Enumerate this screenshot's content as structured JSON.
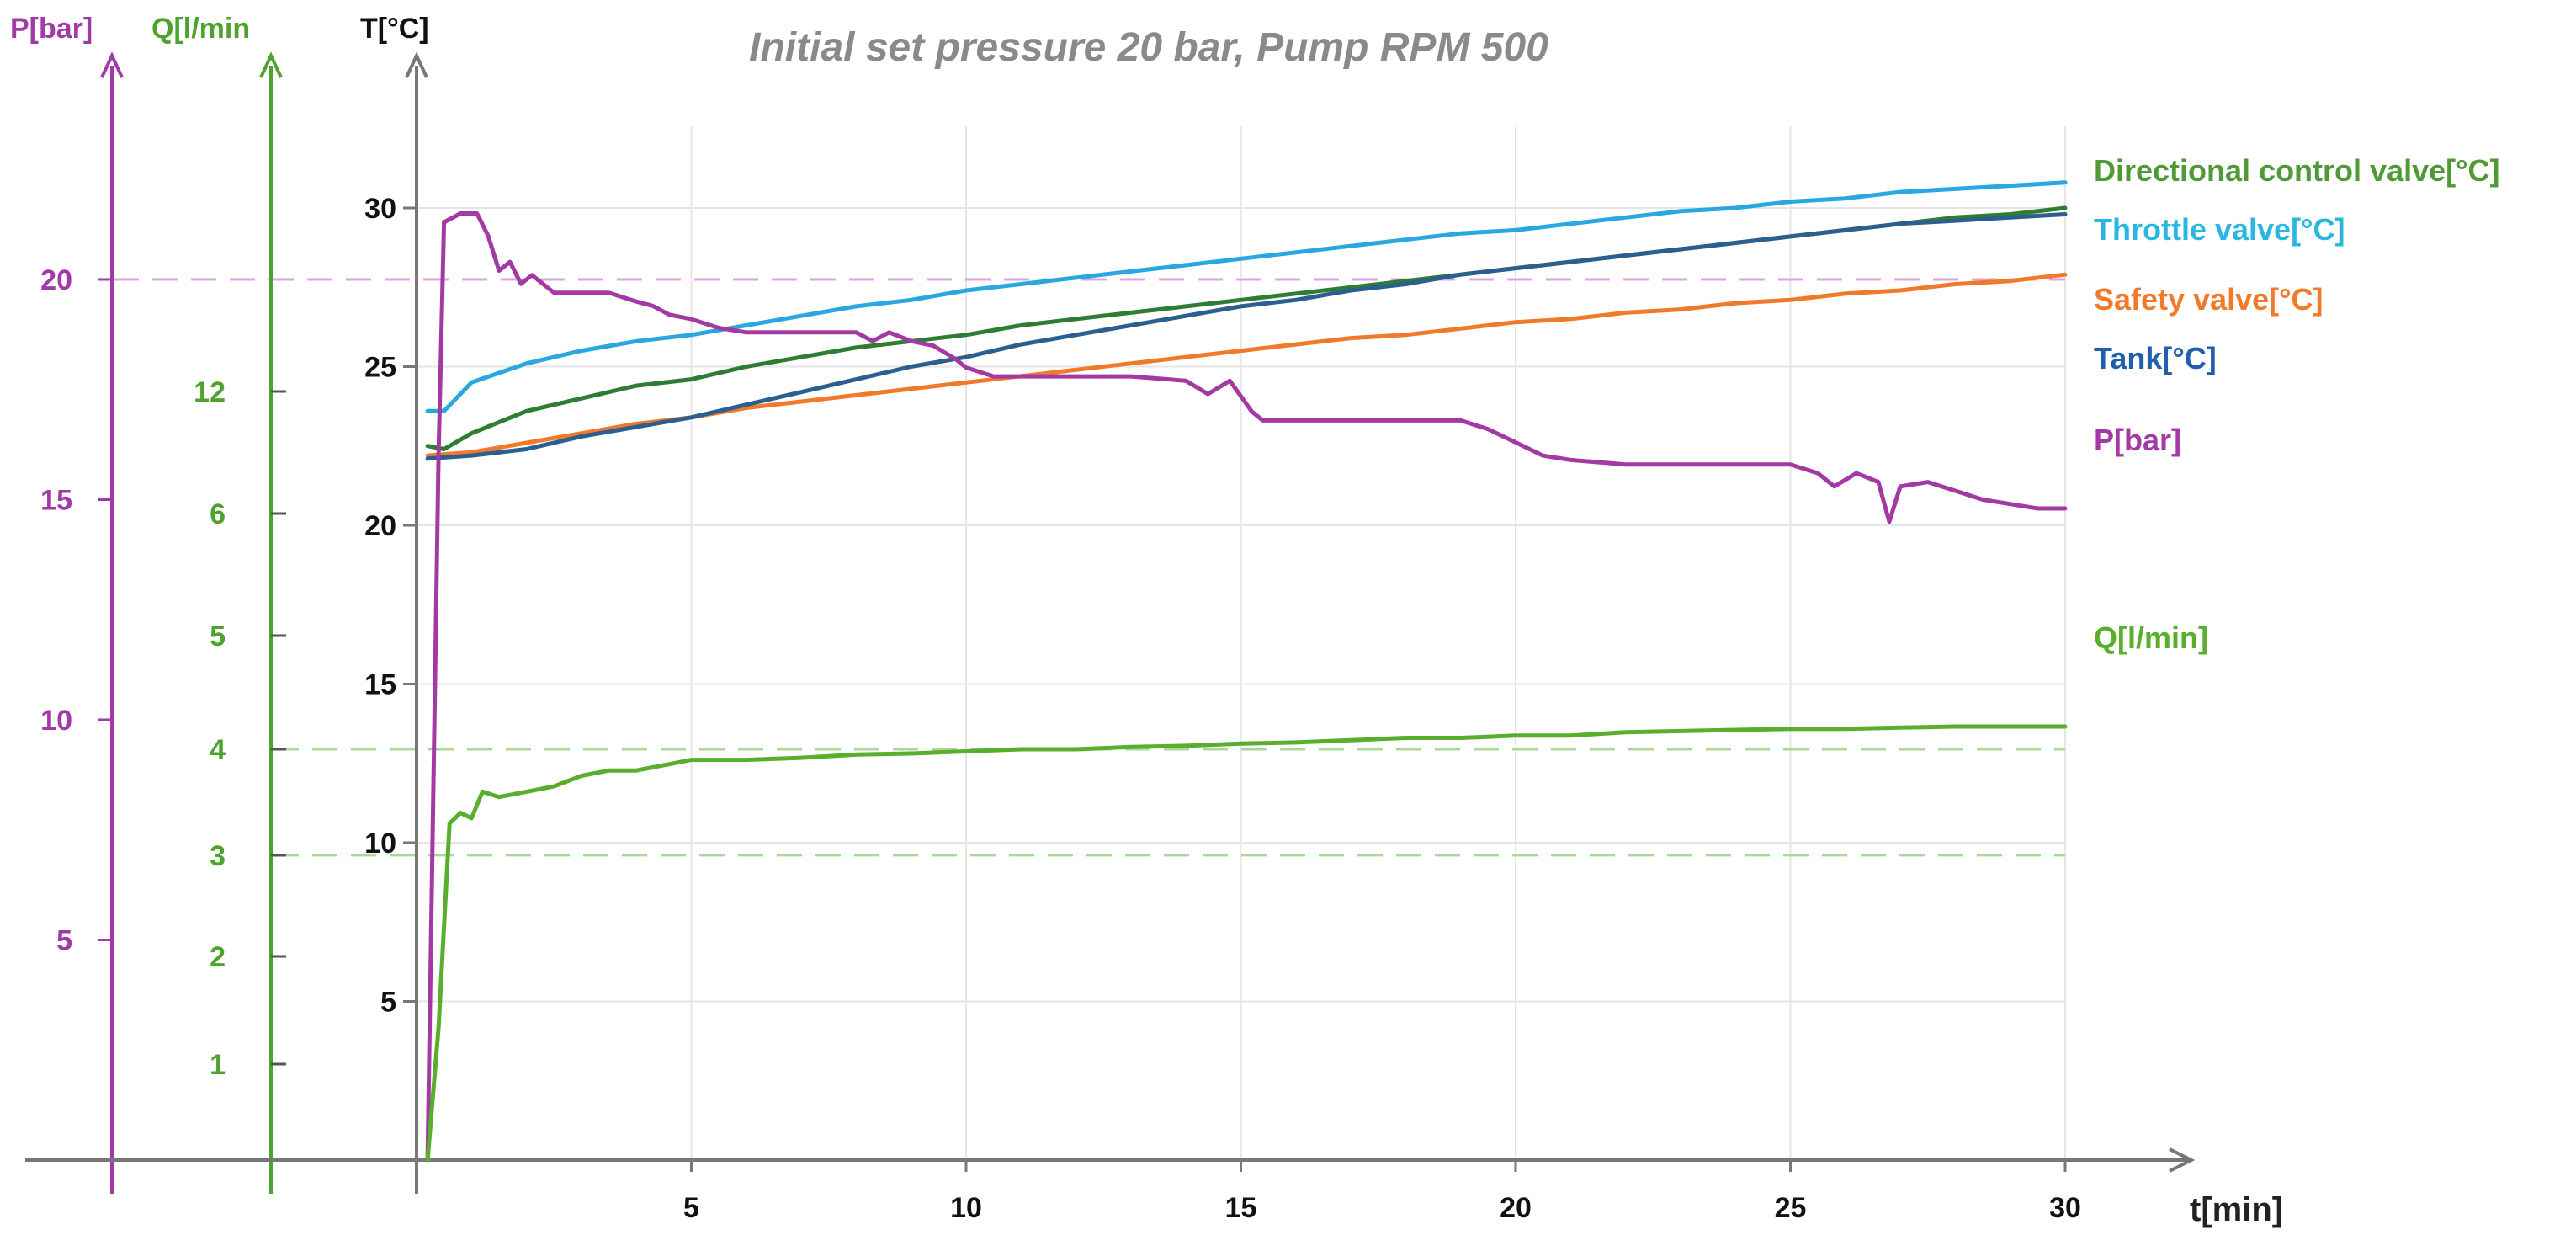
{
  "chart_data": {
    "type": "line",
    "title": "Initial set pressure 20 bar,  Pump RPM 500",
    "xlabel": "t[min]",
    "xlim": [
      0,
      32
    ],
    "xticks": [
      5,
      10,
      15,
      20,
      25,
      30
    ],
    "axes": {
      "pressure": {
        "label": "P[bar]",
        "color": "#a03aa8",
        "ticks": [
          5,
          10,
          15,
          20
        ],
        "ref_line": 20
      },
      "flow": {
        "label": "Q[l/min",
        "color": "#4ea32e",
        "ticks": [
          1,
          2,
          3,
          4,
          5,
          6,
          12
        ],
        "ref_lines": [
          3,
          4
        ]
      },
      "temperature": {
        "label": "T[°C]",
        "color": "#111111",
        "ticks": [
          5,
          10,
          15,
          20,
          25,
          30
        ],
        "ylim": [
          0,
          35
        ]
      }
    },
    "series": [
      {
        "name": "Directional control valve[°C]",
        "axis": "temperature",
        "color": "#2e7d32",
        "legend_color": "#4f9a36",
        "points": [
          [
            0.2,
            22.5
          ],
          [
            0.5,
            22.4
          ],
          [
            1,
            22.9
          ],
          [
            2,
            23.6
          ],
          [
            3,
            24
          ],
          [
            4,
            24.4
          ],
          [
            5,
            24.6
          ],
          [
            6,
            25.0
          ],
          [
            7,
            25.3
          ],
          [
            8,
            25.6
          ],
          [
            9,
            25.8
          ],
          [
            10,
            26.0
          ],
          [
            11,
            26.3
          ],
          [
            12,
            26.5
          ],
          [
            13,
            26.7
          ],
          [
            14,
            26.9
          ],
          [
            15,
            27.1
          ],
          [
            16,
            27.3
          ],
          [
            17,
            27.5
          ],
          [
            18,
            27.7
          ],
          [
            19,
            27.9
          ],
          [
            20,
            28.1
          ],
          [
            21,
            28.3
          ],
          [
            22,
            28.5
          ],
          [
            23,
            28.7
          ],
          [
            24,
            28.9
          ],
          [
            25,
            29.1
          ],
          [
            26,
            29.3
          ],
          [
            27,
            29.5
          ],
          [
            28,
            29.7
          ],
          [
            29,
            29.8
          ],
          [
            30,
            30.0
          ]
        ]
      },
      {
        "name": "Throttle valve[°C]",
        "axis": "temperature",
        "color": "#29a8e0",
        "legend_color": "#29b6e3",
        "points": [
          [
            0.2,
            23.6
          ],
          [
            0.5,
            23.6
          ],
          [
            1,
            24.5
          ],
          [
            2,
            25.1
          ],
          [
            3,
            25.5
          ],
          [
            4,
            25.8
          ],
          [
            5,
            26.0
          ],
          [
            6,
            26.3
          ],
          [
            7,
            26.6
          ],
          [
            8,
            26.9
          ],
          [
            9,
            27.1
          ],
          [
            10,
            27.4
          ],
          [
            11,
            27.6
          ],
          [
            12,
            27.8
          ],
          [
            13,
            28.0
          ],
          [
            14,
            28.2
          ],
          [
            15,
            28.4
          ],
          [
            16,
            28.6
          ],
          [
            17,
            28.8
          ],
          [
            18,
            29.0
          ],
          [
            19,
            29.2
          ],
          [
            20,
            29.3
          ],
          [
            21,
            29.5
          ],
          [
            22,
            29.7
          ],
          [
            23,
            29.9
          ],
          [
            24,
            30.0
          ],
          [
            25,
            30.2
          ],
          [
            26,
            30.3
          ],
          [
            27,
            30.5
          ],
          [
            28,
            30.6
          ],
          [
            29,
            30.7
          ],
          [
            30,
            30.8
          ]
        ]
      },
      {
        "name": "Safety valve[°C]",
        "axis": "temperature",
        "color": "#f07a2a",
        "legend_color": "#f07a2a",
        "points": [
          [
            0.2,
            22.2
          ],
          [
            1,
            22.3
          ],
          [
            2,
            22.6
          ],
          [
            3,
            22.9
          ],
          [
            4,
            23.2
          ],
          [
            5,
            23.4
          ],
          [
            6,
            23.7
          ],
          [
            7,
            23.9
          ],
          [
            8,
            24.1
          ],
          [
            9,
            24.3
          ],
          [
            10,
            24.5
          ],
          [
            11,
            24.7
          ],
          [
            12,
            24.9
          ],
          [
            13,
            25.1
          ],
          [
            14,
            25.3
          ],
          [
            15,
            25.5
          ],
          [
            16,
            25.7
          ],
          [
            17,
            25.9
          ],
          [
            18,
            26.0
          ],
          [
            19,
            26.2
          ],
          [
            20,
            26.4
          ],
          [
            21,
            26.5
          ],
          [
            22,
            26.7
          ],
          [
            23,
            26.8
          ],
          [
            24,
            27.0
          ],
          [
            25,
            27.1
          ],
          [
            26,
            27.3
          ],
          [
            27,
            27.4
          ],
          [
            28,
            27.6
          ],
          [
            29,
            27.7
          ],
          [
            30,
            27.9
          ]
        ]
      },
      {
        "name": "Tank[°C]",
        "axis": "temperature",
        "color": "#2a5f8f",
        "legend_color": "#1f5fae",
        "points": [
          [
            0.2,
            22.1
          ],
          [
            1,
            22.2
          ],
          [
            2,
            22.4
          ],
          [
            3,
            22.8
          ],
          [
            4,
            23.1
          ],
          [
            5,
            23.4
          ],
          [
            6,
            23.8
          ],
          [
            7,
            24.2
          ],
          [
            8,
            24.6
          ],
          [
            9,
            25.0
          ],
          [
            10,
            25.3
          ],
          [
            11,
            25.7
          ],
          [
            12,
            26.0
          ],
          [
            13,
            26.3
          ],
          [
            14,
            26.6
          ],
          [
            15,
            26.9
          ],
          [
            16,
            27.1
          ],
          [
            17,
            27.4
          ],
          [
            18,
            27.6
          ],
          [
            19,
            27.9
          ],
          [
            20,
            28.1
          ],
          [
            21,
            28.3
          ],
          [
            22,
            28.5
          ],
          [
            23,
            28.7
          ],
          [
            24,
            28.9
          ],
          [
            25,
            29.1
          ],
          [
            26,
            29.3
          ],
          [
            27,
            29.5
          ],
          [
            28,
            29.6
          ],
          [
            29,
            29.7
          ],
          [
            30,
            29.8
          ]
        ]
      },
      {
        "name": "P[bar]",
        "axis": "pressure",
        "color": "#a33aa3",
        "legend_color": "#a33aa3",
        "points": [
          [
            0.2,
            0
          ],
          [
            0.4,
            16
          ],
          [
            0.5,
            21.3
          ],
          [
            0.8,
            21.5
          ],
          [
            1.1,
            21.5
          ],
          [
            1.3,
            21
          ],
          [
            1.5,
            20.2
          ],
          [
            1.7,
            20.4
          ],
          [
            1.9,
            19.9
          ],
          [
            2.1,
            20.1
          ],
          [
            2.5,
            19.7
          ],
          [
            3,
            19.7
          ],
          [
            3.5,
            19.7
          ],
          [
            4,
            19.5
          ],
          [
            4.3,
            19.4
          ],
          [
            4.6,
            19.2
          ],
          [
            5,
            19.1
          ],
          [
            5.5,
            18.9
          ],
          [
            6,
            18.8
          ],
          [
            7,
            18.8
          ],
          [
            8,
            18.8
          ],
          [
            8.3,
            18.6
          ],
          [
            8.6,
            18.8
          ],
          [
            9,
            18.6
          ],
          [
            9.4,
            18.5
          ],
          [
            9.8,
            18.2
          ],
          [
            10,
            18.0
          ],
          [
            10.5,
            17.8
          ],
          [
            11,
            17.8
          ],
          [
            12,
            17.8
          ],
          [
            13,
            17.8
          ],
          [
            14,
            17.7
          ],
          [
            14.4,
            17.4
          ],
          [
            14.8,
            17.7
          ],
          [
            15.2,
            17.0
          ],
          [
            15.4,
            16.8
          ],
          [
            16,
            16.8
          ],
          [
            17,
            16.8
          ],
          [
            18,
            16.8
          ],
          [
            19,
            16.8
          ],
          [
            19.5,
            16.6
          ],
          [
            20,
            16.3
          ],
          [
            20.5,
            16.0
          ],
          [
            21,
            15.9
          ],
          [
            22,
            15.8
          ],
          [
            23,
            15.8
          ],
          [
            24,
            15.8
          ],
          [
            25,
            15.8
          ],
          [
            25.5,
            15.6
          ],
          [
            25.8,
            15.3
          ],
          [
            26.2,
            15.6
          ],
          [
            26.6,
            15.4
          ],
          [
            26.8,
            14.5
          ],
          [
            27.0,
            15.3
          ],
          [
            27.5,
            15.4
          ],
          [
            28,
            15.2
          ],
          [
            28.5,
            15.0
          ],
          [
            29,
            14.9
          ],
          [
            29.5,
            14.8
          ],
          [
            30,
            14.8
          ]
        ]
      },
      {
        "name": "Q[l/min]",
        "axis": "flow",
        "color": "#5aae2d",
        "legend_color": "#5aae2d",
        "points": [
          [
            0.2,
            0
          ],
          [
            0.4,
            1.3
          ],
          [
            0.6,
            3.3
          ],
          [
            0.8,
            3.4
          ],
          [
            1,
            3.35
          ],
          [
            1.2,
            3.6
          ],
          [
            1.5,
            3.55
          ],
          [
            2,
            3.6
          ],
          [
            2.5,
            3.65
          ],
          [
            3,
            3.75
          ],
          [
            3.5,
            3.8
          ],
          [
            4,
            3.8
          ],
          [
            4.5,
            3.85
          ],
          [
            5,
            3.9
          ],
          [
            6,
            3.9
          ],
          [
            7,
            3.92
          ],
          [
            8,
            3.95
          ],
          [
            9,
            3.96
          ],
          [
            10,
            3.98
          ],
          [
            11,
            4.0
          ],
          [
            12,
            4.0
          ],
          [
            13,
            4.02
          ],
          [
            14,
            4.03
          ],
          [
            15,
            4.05
          ],
          [
            16,
            4.06
          ],
          [
            17,
            4.08
          ],
          [
            18,
            4.1
          ],
          [
            19,
            4.1
          ],
          [
            20,
            4.12
          ],
          [
            21,
            4.12
          ],
          [
            22,
            4.15
          ],
          [
            23,
            4.16
          ],
          [
            24,
            4.17
          ],
          [
            25,
            4.18
          ],
          [
            26,
            4.18
          ],
          [
            27,
            4.19
          ],
          [
            28,
            4.2
          ],
          [
            29,
            4.2
          ],
          [
            30,
            4.2
          ]
        ]
      }
    ]
  }
}
